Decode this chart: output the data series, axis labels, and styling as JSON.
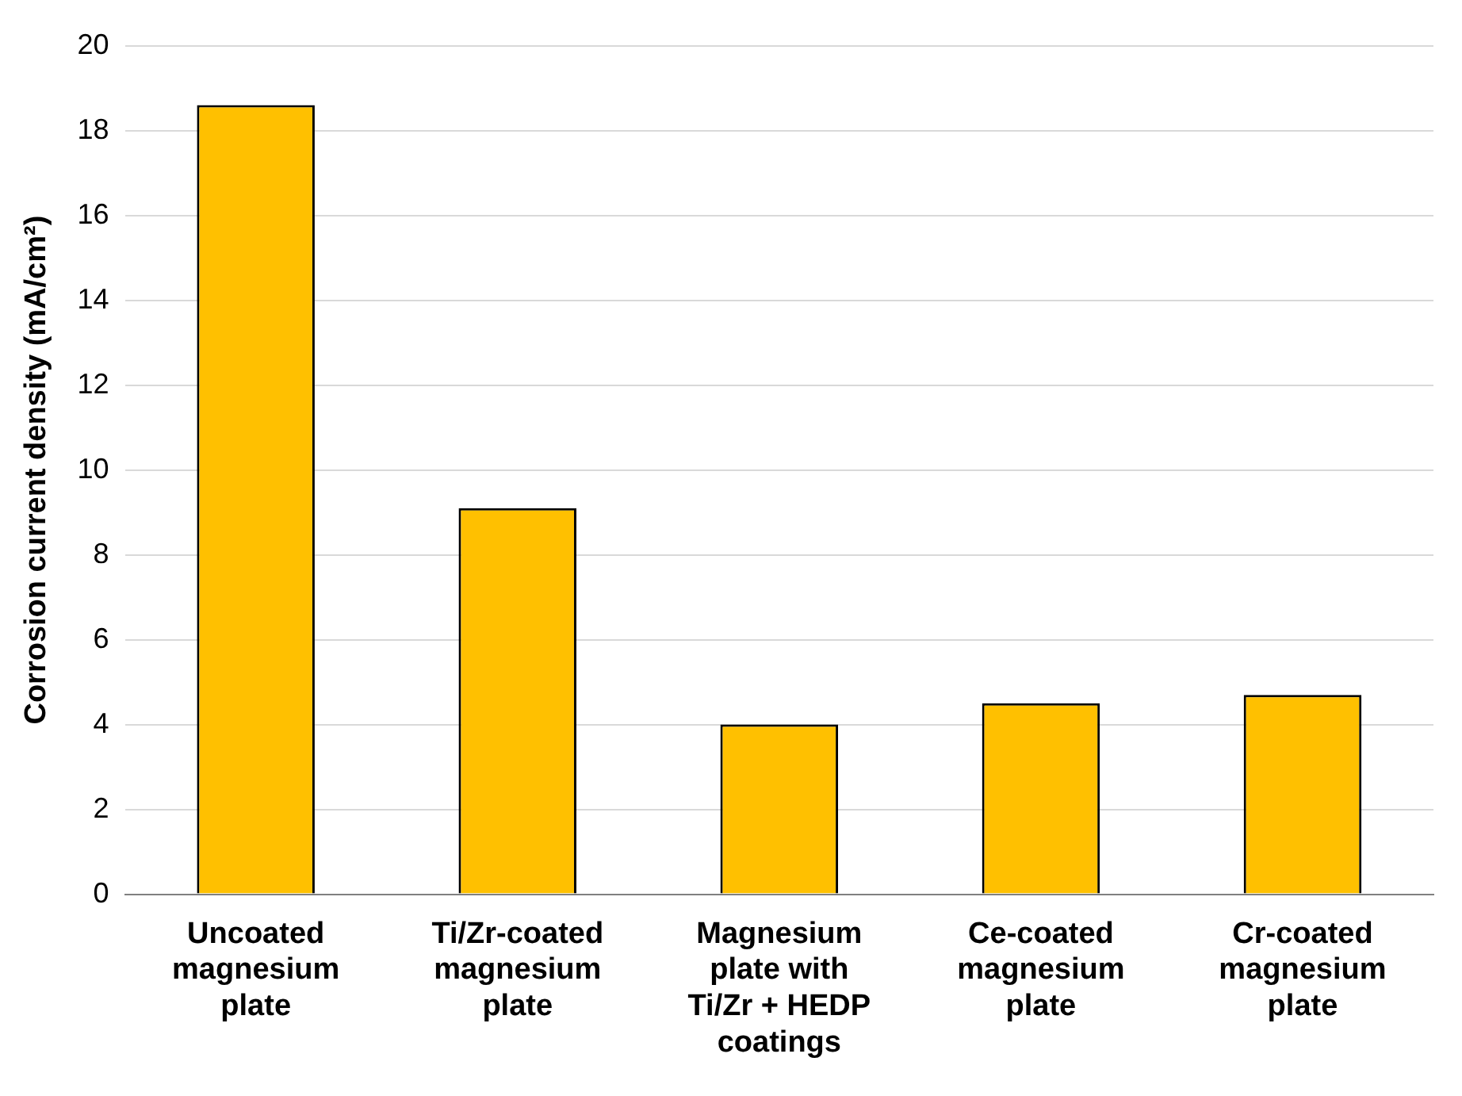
{
  "chart_data": {
    "type": "bar",
    "ylabel": "Corrosion current density (mA/cm²)",
    "categories": [
      "Uncoated magnesium plate",
      "Ti/Zr-coated magnesium plate",
      "Magnesium plate with Ti/Zr + HEDP coatings",
      "Ce-coated magnesium plate",
      "Cr-coated magnesium plate"
    ],
    "values": [
      18.6,
      9.1,
      4.0,
      4.5,
      4.7
    ],
    "color": "#ffc000",
    "ylim": [
      0,
      20
    ],
    "yticks": [
      0,
      2,
      4,
      6,
      8,
      10,
      12,
      14,
      16,
      18,
      20
    ],
    "grid": "y",
    "legend": false
  }
}
